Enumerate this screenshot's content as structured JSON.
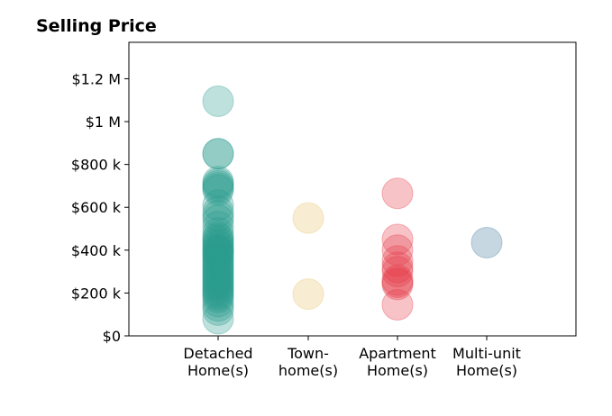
{
  "chart_data": {
    "type": "scatter",
    "title": "Selling Price",
    "xlabel": "",
    "ylabel": "",
    "categories": [
      [
        "Detached",
        "Home(s)"
      ],
      [
        "Town-",
        "home(s)"
      ],
      [
        "Apartment",
        "Home(s)"
      ],
      [
        "Multi-unit",
        "Home(s)"
      ]
    ],
    "y_ticks": [
      0,
      200000,
      400000,
      600000,
      800000,
      1000000,
      1200000
    ],
    "y_tick_labels": [
      "$0",
      "$200 k",
      "$400 k",
      "$600 k",
      "$800 k",
      "$1 M",
      "$1.2 M"
    ],
    "ylim": [
      0,
      1370000
    ],
    "grid": false,
    "colors": [
      "#2a9d8f",
      "#e9c46a",
      "#e63946",
      "#457b9d"
    ],
    "series": [
      {
        "values": [
          1095000,
          850000,
          850000,
          720000,
          710000,
          700000,
          690000,
          680000,
          610000,
          580000,
          560000,
          540000,
          510000,
          480000,
          460000,
          450000,
          440000,
          430000,
          420000,
          410000,
          400000,
          395000,
          390000,
          380000,
          370000,
          360000,
          350000,
          340000,
          330000,
          320000,
          310000,
          300000,
          290000,
          280000,
          270000,
          260000,
          250000,
          240000,
          230000,
          220000,
          210000,
          200000,
          190000,
          180000,
          160000,
          140000,
          120000,
          80000
        ]
      },
      {
        "values": [
          550000,
          195000
        ]
      },
      {
        "values": [
          665000,
          450000,
          400000,
          350000,
          320000,
          300000,
          260000,
          250000,
          240000,
          145000
        ]
      },
      {
        "values": [
          435000
        ]
      }
    ]
  }
}
